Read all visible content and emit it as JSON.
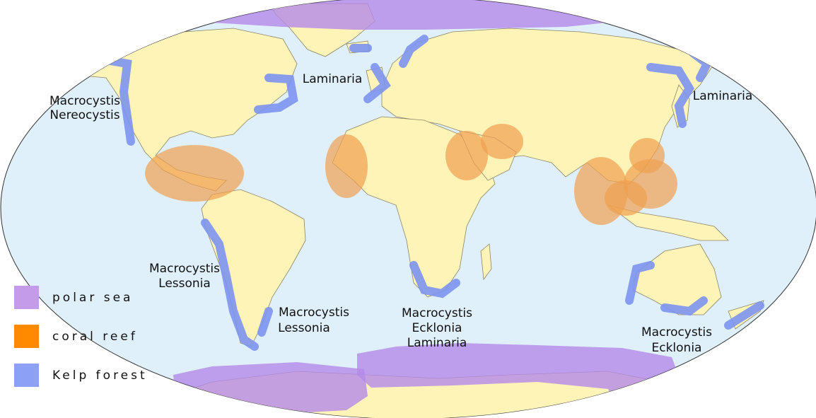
{
  "map": {
    "ocean_color": "#dff0fa",
    "land_color": "#fff4b7",
    "border_color": "#8c8466",
    "polar_color": "#b48ae8",
    "coral_color": "#f0a050",
    "kelp_color": "#7d94f0"
  },
  "labels": {
    "nw_america_l1": "Macrocystis",
    "nw_america_l2": "Nereocystis",
    "n_atlantic": "Laminaria",
    "nw_pacific": "Laminaria",
    "w_south_america_l1": "Macrocystis",
    "w_south_america_l2": "Lessonia",
    "e_south_america_l1": "Macrocystis",
    "e_south_america_l2": "Lessonia",
    "s_africa_l1": "Macrocystis",
    "s_africa_l2": "Ecklonia",
    "s_africa_l3": "Laminaria",
    "australia_l1": "Macrocystis",
    "australia_l2": "Ecklonia"
  },
  "legend": {
    "items": [
      {
        "label": "polar sea",
        "color": "#c49be8"
      },
      {
        "label": "coral reef",
        "color": "#ff8a00"
      },
      {
        "label": "Kelp forest",
        "color": "#8ca0f5"
      }
    ]
  }
}
